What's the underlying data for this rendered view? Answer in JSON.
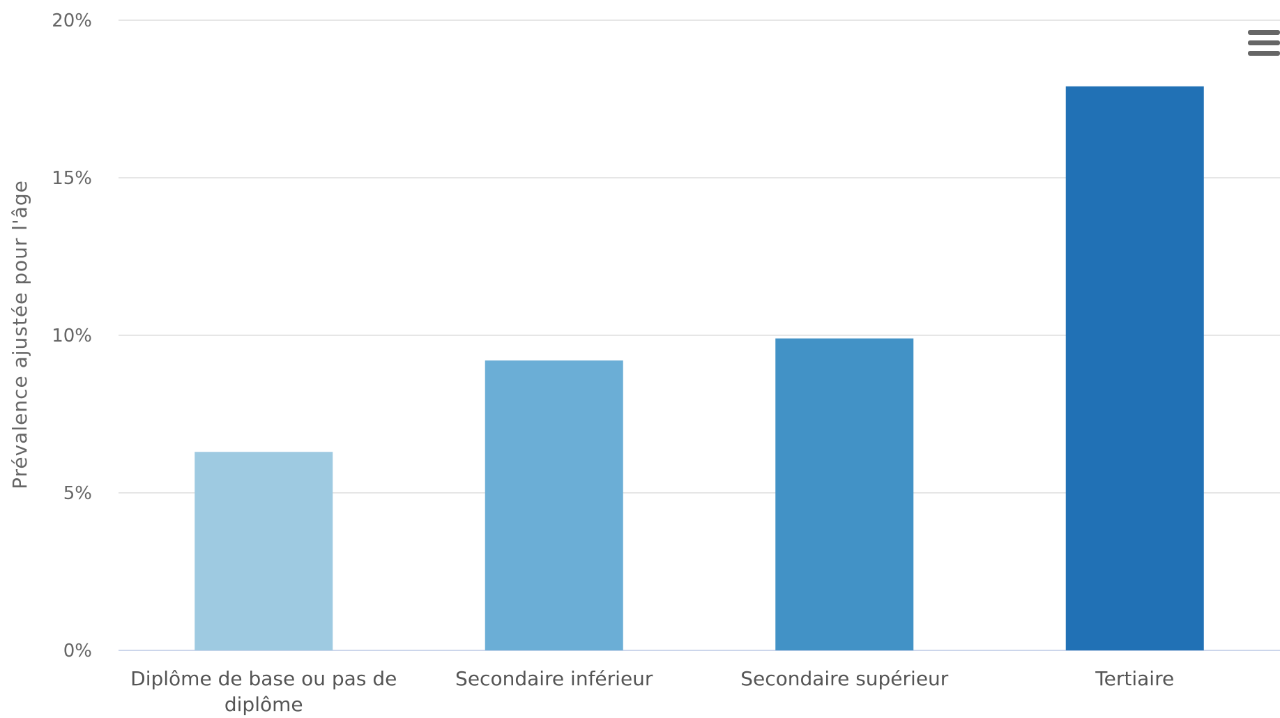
{
  "chart_data": {
    "type": "bar",
    "categories": [
      [
        "Diplôme de base ou pas de",
        "diplôme"
      ],
      [
        "Secondaire inférieur"
      ],
      [
        "Secondaire supérieur"
      ],
      [
        "Tertiaire"
      ]
    ],
    "values": [
      6.3,
      9.2,
      9.9,
      17.9
    ],
    "colors": [
      "#9ecae1",
      "#6baed6",
      "#4292c6",
      "#2171b5"
    ],
    "ylabel": "Prévalence ajustée pour l'âge",
    "xlabel": "",
    "ylim": [
      0,
      20
    ],
    "yticks": [
      0,
      5,
      10,
      15,
      20
    ],
    "ytick_suffix": "%",
    "grid": true,
    "legend": "none"
  },
  "menu": {
    "icon": "hamburger-menu-icon"
  }
}
